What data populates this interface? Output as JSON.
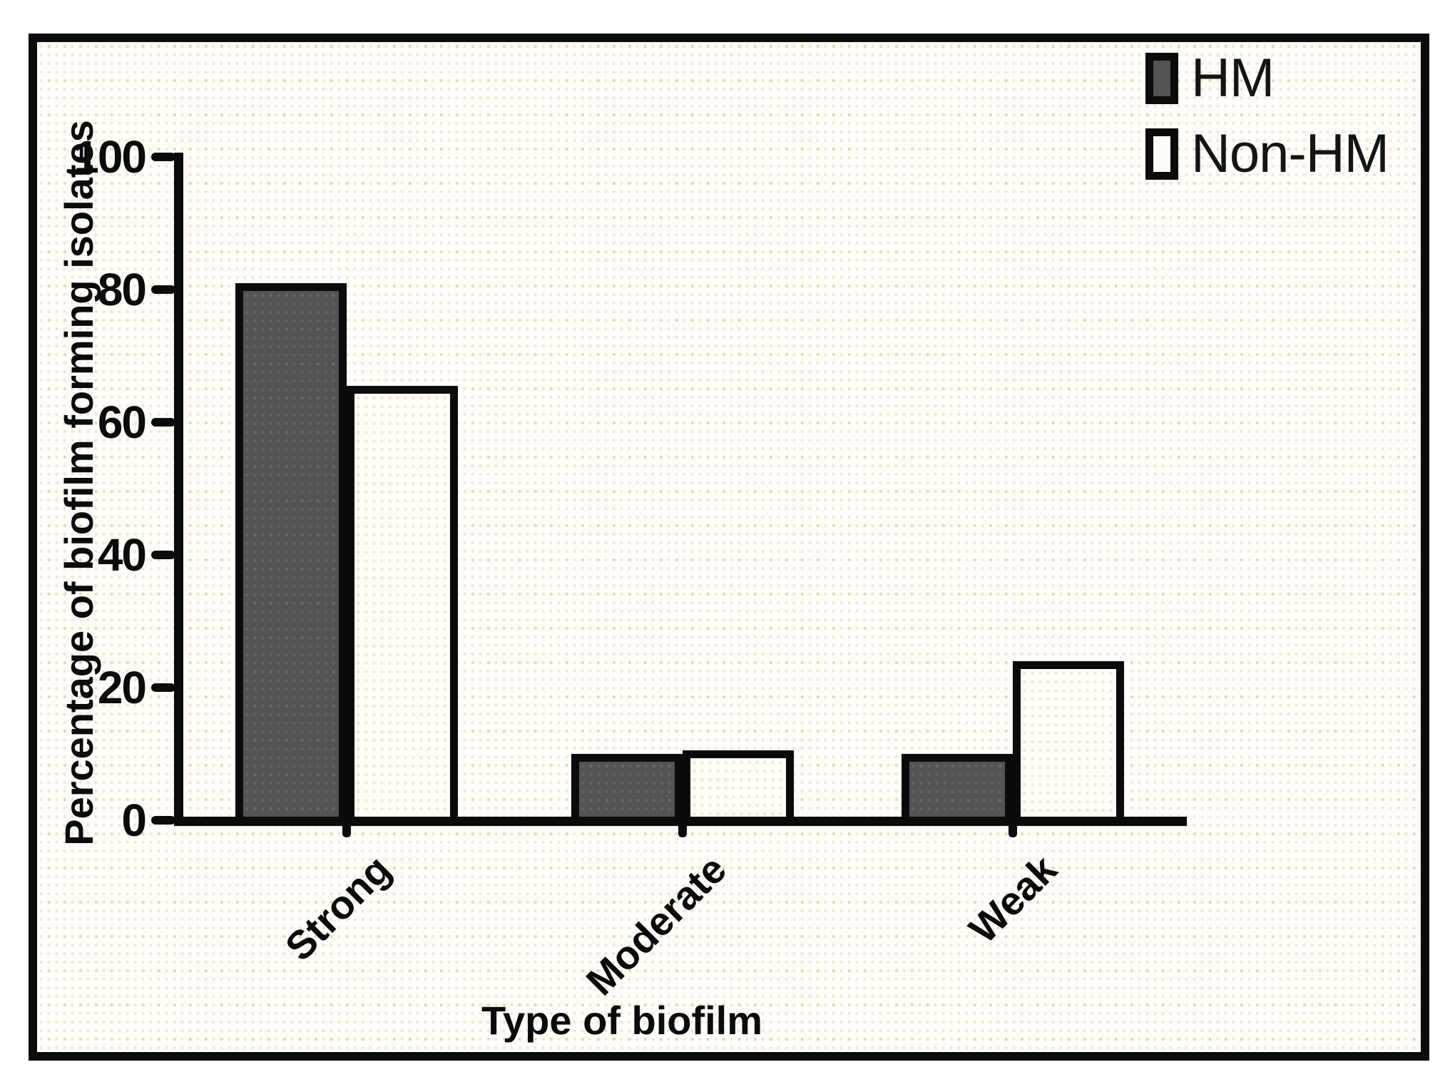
{
  "figure": {
    "description": "Grouped bar chart comparing biofilm formation between HM and Non-HM isolates",
    "colors": {
      "ink": "#0b0b0b",
      "panel_bg": "#fdfcf8",
      "hm_fill": "#545454",
      "nonhm_fill": "#fdfcf6",
      "dot_pink": "rgba(238,178,140,0.35)",
      "dot_green": "rgba(160,205,110,0.35)"
    }
  },
  "chart_data": {
    "type": "bar",
    "categories": [
      "Strong",
      "Moderate",
      "Weak"
    ],
    "series": [
      {
        "name": "HM",
        "style": "dark-gray-filled",
        "values": [
          81,
          10,
          10
        ]
      },
      {
        "name": "Non-HM",
        "style": "white-outlined",
        "values": [
          65.5,
          10.5,
          24
        ]
      }
    ],
    "title": "",
    "xlabel": "Type of biofilm",
    "ylabel": "Percentage of biofilm forming isolates",
    "ylim": [
      0,
      100
    ],
    "yticks": [
      0,
      20,
      40,
      60,
      80,
      100
    ],
    "grid": false,
    "legend_position": "top-right"
  },
  "legend": {
    "items": [
      {
        "label": "HM",
        "swatch": "dark-gray"
      },
      {
        "label": "Non-HM",
        "swatch": "white"
      }
    ]
  }
}
